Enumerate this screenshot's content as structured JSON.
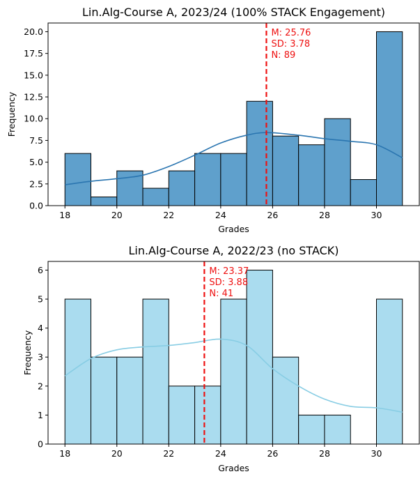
{
  "chart_data": [
    {
      "type": "bar",
      "title": "Lin.Alg-Course A, 2023/24 (100% STACK Engagement)",
      "xlabel": "Grades",
      "ylabel": "Frequency",
      "bin_edges": [
        18,
        19,
        20,
        21,
        22,
        23,
        24,
        25,
        26,
        27,
        28,
        29,
        30,
        31
      ],
      "values": [
        6,
        1,
        4,
        2,
        4,
        6,
        6,
        12,
        8,
        7,
        10,
        3,
        20
      ],
      "xlim": [
        17.35,
        31.65
      ],
      "ylim": [
        0,
        21
      ],
      "x_ticks": [
        18,
        20,
        22,
        24,
        26,
        28,
        30
      ],
      "y_ticks": [
        0,
        2.5,
        5,
        7.5,
        10,
        12.5,
        15,
        17.5,
        20
      ],
      "y_tick_labels": [
        "0.0",
        "2.5",
        "5.0",
        "7.5",
        "10.0",
        "12.5",
        "15.0",
        "17.5",
        "20.0"
      ],
      "kde": [
        [
          18,
          2.4
        ],
        [
          19,
          2.8
        ],
        [
          20,
          3.1
        ],
        [
          21,
          3.5
        ],
        [
          22,
          4.5
        ],
        [
          23,
          5.8
        ],
        [
          24,
          7.2
        ],
        [
          25,
          8.1
        ],
        [
          25.8,
          8.4
        ],
        [
          27,
          8.1
        ],
        [
          28,
          7.7
        ],
        [
          29,
          7.4
        ],
        [
          30,
          7.0
        ],
        [
          31,
          5.5
        ]
      ],
      "mean": 25.76,
      "stat_lines": [
        "M: 25.76",
        "SD: 3.78",
        "N: 89"
      ],
      "colors": {
        "bar": "#5fa0cc",
        "edge": "#000000",
        "kde": "#2a75b0",
        "mean": "#ee1111"
      },
      "grid": false
    },
    {
      "type": "bar",
      "title": "Lin.Alg-Course A, 2022/23 (no STACK)",
      "xlabel": "Grades",
      "ylabel": "Frequency",
      "bin_edges": [
        18,
        19,
        20,
        21,
        22,
        23,
        24,
        25,
        26,
        27,
        28,
        29,
        30,
        31
      ],
      "values": [
        5,
        3,
        3,
        5,
        2,
        2,
        5,
        6,
        3,
        1,
        1,
        0,
        5
      ],
      "xlim": [
        17.35,
        31.65
      ],
      "ylim": [
        0,
        6.3
      ],
      "x_ticks": [
        18,
        20,
        22,
        24,
        26,
        28,
        30
      ],
      "y_ticks": [
        0,
        1,
        2,
        3,
        4,
        5,
        6
      ],
      "y_tick_labels": [
        "0",
        "1",
        "2",
        "3",
        "4",
        "5",
        "6"
      ],
      "kde": [
        [
          18,
          2.35
        ],
        [
          19,
          2.95
        ],
        [
          20,
          3.25
        ],
        [
          21,
          3.35
        ],
        [
          22,
          3.4
        ],
        [
          23,
          3.5
        ],
        [
          24,
          3.62
        ],
        [
          25,
          3.4
        ],
        [
          26,
          2.6
        ],
        [
          27,
          2.0
        ],
        [
          28,
          1.55
        ],
        [
          29,
          1.3
        ],
        [
          30,
          1.25
        ],
        [
          31,
          1.1
        ]
      ],
      "mean": 23.37,
      "stat_lines": [
        "M: 23.37",
        "SD: 3.88",
        "N: 41"
      ],
      "colors": {
        "bar": "#aadcef",
        "edge": "#000000",
        "kde": "#88cde4",
        "mean": "#ee1111"
      },
      "grid": false
    }
  ]
}
